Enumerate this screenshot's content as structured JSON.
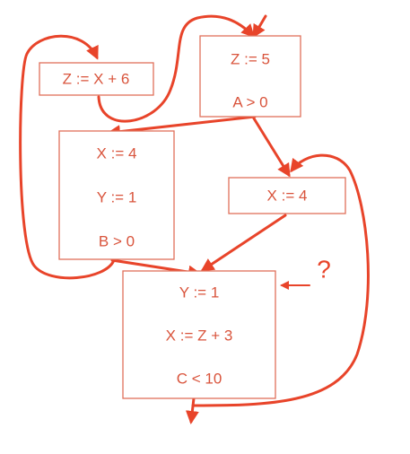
{
  "colors": {
    "box_stroke": "#e0705a",
    "box_text": "#d9543c",
    "edge": "#e8442a"
  },
  "nodes": {
    "entry": {
      "lines": [
        "Z := 5",
        "A > 0"
      ]
    },
    "z_assign": {
      "lines": [
        "Z := X + 6"
      ]
    },
    "left": {
      "lines": [
        "X := 4",
        "Y := 1",
        "B > 0"
      ]
    },
    "right": {
      "lines": [
        "X := 4"
      ]
    },
    "merge": {
      "lines": [
        "Y := 1",
        "X := Z + 3",
        "C < 10"
      ]
    }
  },
  "question_mark": "?"
}
